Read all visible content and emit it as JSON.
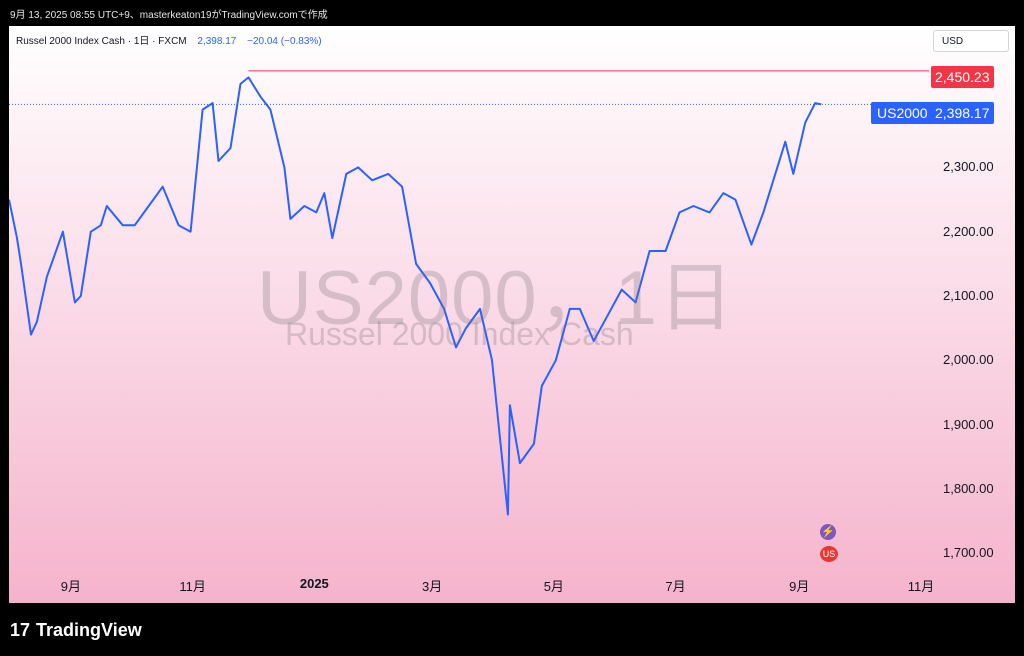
{
  "top_text": "9月 13, 2025 08:55 UTC+9、masterkeaton19がTradingView.comで作成",
  "header": {
    "title": "Russel 2000 Index Cash · 1日 · FXCM",
    "price": "2,398.17",
    "change": "−20.04 (−0.83%)"
  },
  "currency_button": "USD",
  "watermark": {
    "line1": "US2000，1日",
    "line2": "Russel 2000 Index Cash"
  },
  "symbol_tag": "US2000",
  "price_tags": {
    "high": "2,450.23",
    "last": "2,398.17"
  },
  "colors": {
    "line": "#2962ff",
    "high_line": "#f23645",
    "bg_top": "#ffffff",
    "bg_bottom": "#f5b3cc"
  },
  "brand": "TradingView",
  "event_icons": [
    "lightning-icon",
    "us-flag-icon"
  ],
  "chart_data": {
    "type": "line",
    "title": "Russel 2000 Index Cash",
    "ylim": [
      1680,
      2520
    ],
    "y_ticks": [
      "2,300.00",
      "2,200.00",
      "2,100.00",
      "2,000.00",
      "1,900.00",
      "1,800.00",
      "1,700.00"
    ],
    "x_ticks": [
      "9月",
      "11月",
      "2025",
      "3月",
      "5月",
      "7月",
      "9月",
      "11月"
    ],
    "series": [
      {
        "name": "US2000",
        "x": [
          "2024-08-01",
          "2024-08-05",
          "2024-08-07",
          "2024-08-12",
          "2024-08-15",
          "2024-08-20",
          "2024-08-28",
          "2024-09-03",
          "2024-09-06",
          "2024-09-11",
          "2024-09-16",
          "2024-09-19",
          "2024-09-27",
          "2024-10-03",
          "2024-10-10",
          "2024-10-17",
          "2024-10-25",
          "2024-10-31",
          "2024-11-06",
          "2024-11-11",
          "2024-11-14",
          "2024-11-20",
          "2024-11-25",
          "2024-11-29",
          "2024-12-05",
          "2024-12-10",
          "2024-12-17",
          "2024-12-20",
          "2024-12-27",
          "2025-01-02",
          "2025-01-06",
          "2025-01-10",
          "2025-01-17",
          "2025-01-23",
          "2025-01-30",
          "2025-02-07",
          "2025-02-14",
          "2025-02-21",
          "2025-02-28",
          "2025-03-07",
          "2025-03-13",
          "2025-03-18",
          "2025-03-25",
          "2025-03-31",
          "2025-04-04",
          "2025-04-08",
          "2025-04-09",
          "2025-04-14",
          "2025-04-21",
          "2025-04-25",
          "2025-05-02",
          "2025-05-09",
          "2025-05-14",
          "2025-05-21",
          "2025-05-28",
          "2025-06-04",
          "2025-06-11",
          "2025-06-18",
          "2025-06-26",
          "2025-07-03",
          "2025-07-10",
          "2025-07-18",
          "2025-07-25",
          "2025-07-31",
          "2025-08-08",
          "2025-08-14",
          "2025-08-20",
          "2025-08-25",
          "2025-08-29",
          "2025-09-04",
          "2025-09-09",
          "2025-09-12"
        ],
        "values": [
          2250,
          2190,
          2150,
          2040,
          2060,
          2130,
          2200,
          2090,
          2100,
          2200,
          2210,
          2240,
          2210,
          2210,
          2240,
          2270,
          2210,
          2200,
          2390,
          2400,
          2310,
          2330,
          2430,
          2440,
          2410,
          2390,
          2300,
          2220,
          2240,
          2230,
          2260,
          2190,
          2290,
          2300,
          2280,
          2290,
          2270,
          2150,
          2120,
          2080,
          2020,
          2050,
          2080,
          2000,
          1880,
          1760,
          1930,
          1840,
          1870,
          1960,
          2000,
          2080,
          2080,
          2030,
          2070,
          2110,
          2090,
          2170,
          2170,
          2230,
          2240,
          2230,
          2260,
          2250,
          2180,
          2230,
          2290,
          2340,
          2290,
          2370,
          2400,
          2398
        ]
      }
    ]
  }
}
